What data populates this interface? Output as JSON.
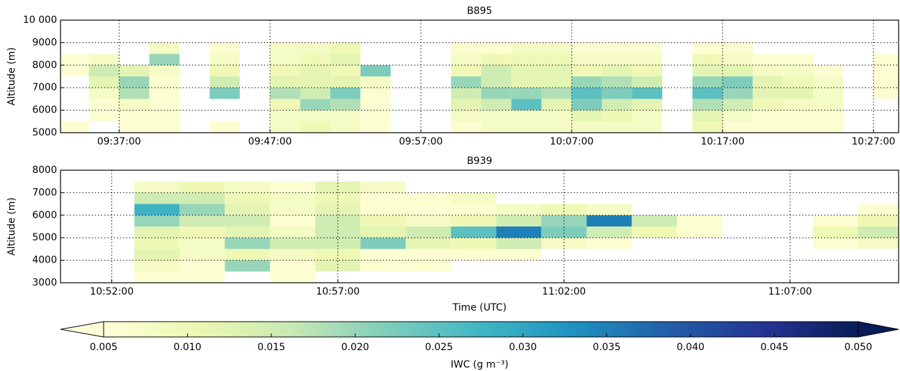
{
  "chart_data": [
    {
      "type": "heatmap",
      "title": "B895",
      "ylabel": "Altitude (m)",
      "x": [
        "09:34:00",
        "09:36:00",
        "09:38:00",
        "09:40:00",
        "09:42:00",
        "09:44:00",
        "09:46:00",
        "09:48:00",
        "09:50:00",
        "09:52:00",
        "09:54:00",
        "09:56:00",
        "09:58:00",
        "10:00:00",
        "10:02:00",
        "10:04:00",
        "10:06:00",
        "10:08:00",
        "10:10:00",
        "10:12:00",
        "10:14:00",
        "10:16:00",
        "10:18:00",
        "10:20:00",
        "10:22:00",
        "10:24:00",
        "10:26:00",
        "10:28:00"
      ],
      "y": [
        5250,
        5750,
        6250,
        6750,
        7250,
        7750,
        8250,
        8750
      ],
      "values": [
        [
          0.006,
          null,
          0.006,
          0.006,
          null,
          0.006,
          null,
          0.008,
          0.01,
          0.008,
          0.006,
          null,
          null,
          0.006,
          0.008,
          0.008,
          0.008,
          0.008,
          0.008,
          0.008,
          null,
          0.01,
          0.006,
          0.006,
          0.006,
          0.006,
          null,
          null
        ],
        [
          null,
          0.006,
          0.006,
          0.006,
          null,
          null,
          null,
          0.008,
          0.008,
          0.008,
          0.006,
          null,
          null,
          0.008,
          0.008,
          0.008,
          0.008,
          0.012,
          0.01,
          0.008,
          null,
          0.012,
          0.008,
          0.006,
          0.006,
          0.006,
          null,
          null
        ],
        [
          null,
          0.006,
          0.008,
          0.006,
          null,
          null,
          null,
          0.01,
          0.02,
          0.018,
          0.006,
          null,
          null,
          0.012,
          0.015,
          0.025,
          0.012,
          0.022,
          0.015,
          0.012,
          null,
          0.018,
          0.015,
          0.01,
          0.008,
          0.008,
          null,
          null
        ],
        [
          null,
          0.008,
          0.018,
          0.006,
          null,
          0.022,
          null,
          0.018,
          0.015,
          0.022,
          0.006,
          null,
          null,
          0.015,
          0.02,
          0.02,
          0.018,
          0.025,
          0.022,
          0.025,
          null,
          0.025,
          0.02,
          0.012,
          0.012,
          0.008,
          null,
          0.006
        ],
        [
          null,
          0.012,
          0.02,
          0.006,
          null,
          0.015,
          null,
          0.012,
          0.012,
          0.012,
          0.008,
          null,
          null,
          0.02,
          0.015,
          0.012,
          0.012,
          0.02,
          0.018,
          0.015,
          null,
          0.02,
          0.022,
          0.012,
          0.01,
          0.008,
          null,
          0.006
        ],
        [
          0.006,
          0.015,
          0.012,
          0.008,
          null,
          0.01,
          null,
          0.01,
          0.012,
          0.01,
          0.022,
          null,
          null,
          0.01,
          0.015,
          0.012,
          0.012,
          0.01,
          0.012,
          0.01,
          null,
          0.012,
          0.012,
          0.008,
          0.008,
          0.006,
          null,
          0.006
        ],
        [
          0.006,
          0.008,
          null,
          0.02,
          null,
          0.008,
          null,
          0.008,
          0.01,
          0.012,
          null,
          null,
          null,
          0.008,
          0.01,
          0.01,
          0.01,
          0.008,
          0.008,
          0.008,
          null,
          0.01,
          0.008,
          0.006,
          0.006,
          null,
          null,
          0.006
        ],
        [
          null,
          null,
          null,
          0.008,
          null,
          0.006,
          null,
          0.008,
          0.008,
          0.01,
          null,
          null,
          null,
          0.006,
          0.006,
          0.008,
          0.008,
          0.006,
          0.006,
          0.006,
          null,
          0.006,
          0.006,
          null,
          null,
          null,
          null,
          null
        ]
      ],
      "xlim": [
        "09:33:07",
        "10:28:40"
      ],
      "xticks": [
        "09:37:00",
        "09:47:00",
        "09:57:00",
        "10:07:00",
        "10:17:00",
        "10:27:00"
      ],
      "ylim": [
        5000,
        10000
      ],
      "yticks": [
        5000,
        6000,
        7000,
        8000,
        9000,
        {
          "value": 10000,
          "label": "10 000"
        }
      ],
      "grid": true
    },
    {
      "type": "heatmap",
      "title": "B939",
      "ylabel": "Altitude (m)",
      "xlabel": "Time (UTC)",
      "x": [
        "10:51:00",
        "10:52:00",
        "10:53:00",
        "10:54:00",
        "10:55:00",
        "10:56:00",
        "10:57:00",
        "10:58:00",
        "10:59:00",
        "11:00:00",
        "11:01:00",
        "11:02:00",
        "11:03:00",
        "11:04:00",
        "11:05:00",
        "11:06:00",
        "11:07:00",
        "11:08:00",
        "11:09:00"
      ],
      "y": [
        3250,
        3750,
        4250,
        4750,
        5250,
        5750,
        6250,
        6750,
        7250
      ],
      "values": [
        [
          null,
          null,
          0.006,
          0.006,
          null,
          0.006,
          null,
          null,
          null,
          null,
          null,
          null,
          null,
          null,
          null,
          null,
          null,
          null,
          null
        ],
        [
          null,
          null,
          0.008,
          0.006,
          0.02,
          0.006,
          0.012,
          0.006,
          0.006,
          null,
          null,
          null,
          null,
          null,
          null,
          null,
          null,
          null,
          null
        ],
        [
          null,
          null,
          0.012,
          0.008,
          0.01,
          0.008,
          0.01,
          0.006,
          0.006,
          0.006,
          0.006,
          null,
          null,
          null,
          null,
          null,
          null,
          null,
          null
        ],
        [
          null,
          null,
          0.01,
          0.008,
          0.02,
          0.015,
          0.015,
          0.022,
          0.012,
          0.01,
          0.015,
          0.008,
          0.006,
          null,
          null,
          null,
          null,
          0.006,
          0.008
        ],
        [
          null,
          null,
          0.012,
          0.01,
          0.012,
          0.008,
          0.015,
          0.012,
          0.015,
          0.025,
          0.035,
          0.022,
          0.015,
          0.01,
          0.006,
          null,
          null,
          0.01,
          0.015
        ],
        [
          null,
          null,
          0.02,
          0.015,
          0.015,
          0.006,
          0.015,
          0.01,
          0.008,
          0.01,
          0.015,
          0.02,
          0.035,
          0.015,
          0.006,
          null,
          null,
          0.006,
          0.01
        ],
        [
          null,
          null,
          0.028,
          0.02,
          0.012,
          0.008,
          0.012,
          0.006,
          0.006,
          0.006,
          0.008,
          0.01,
          0.008,
          null,
          null,
          null,
          null,
          null,
          0.006
        ],
        [
          null,
          null,
          0.015,
          0.015,
          0.01,
          0.008,
          0.01,
          0.006,
          0.006,
          0.008,
          null,
          null,
          null,
          null,
          null,
          null,
          null,
          null,
          null
        ],
        [
          null,
          null,
          0.008,
          0.01,
          0.008,
          0.006,
          0.012,
          0.008,
          null,
          null,
          null,
          null,
          null,
          null,
          null,
          null,
          null,
          null,
          null
        ]
      ],
      "xlim": [
        "10:50:52",
        "11:09:24"
      ],
      "xticks": [
        "10:52:00",
        "10:57:00",
        "11:02:00",
        "11:07:00"
      ],
      "ylim": [
        3000,
        8000
      ],
      "yticks": [
        3000,
        4000,
        5000,
        6000,
        7000,
        8000
      ],
      "grid": true
    }
  ],
  "colorbar": {
    "label": "IWC (g m⁻³)",
    "clim": [
      0.005,
      0.05
    ],
    "extend": "both",
    "colors": [
      "#ffffd9",
      "#edf8b1",
      "#c7e9b4",
      "#7fcdbb",
      "#41b6c4",
      "#1d91c0",
      "#225ea8",
      "#253494",
      "#081d58"
    ],
    "ticks": [
      0.005,
      {
        "value": 0.01,
        "label": "0.010"
      },
      0.015,
      {
        "value": 0.02,
        "label": "0.020"
      },
      0.025,
      {
        "value": 0.03,
        "label": "0.030"
      },
      0.035,
      {
        "value": 0.04,
        "label": "0.040"
      },
      0.045,
      {
        "value": 0.05,
        "label": "0.050"
      }
    ]
  }
}
